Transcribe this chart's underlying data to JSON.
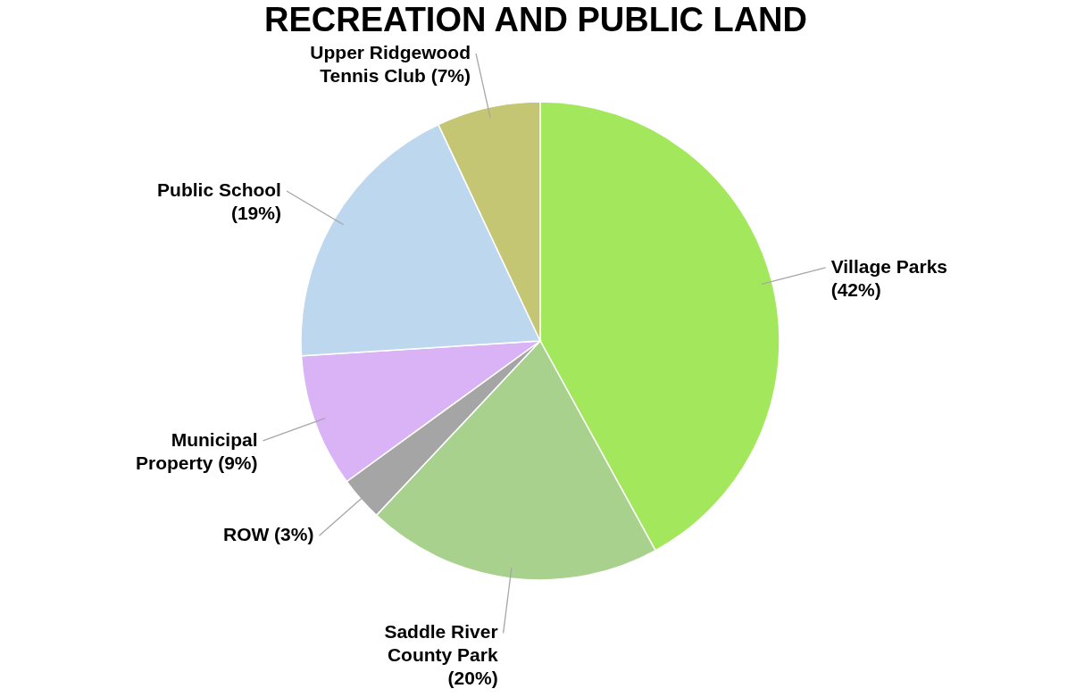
{
  "chart_data": {
    "type": "pie",
    "title": "RECREATION AND PUBLIC LAND",
    "categories": [
      "Village Parks",
      "Saddle River County Park",
      "ROW",
      "Municipal Property",
      "Public School",
      "Upper Ridgewood Tennis Club"
    ],
    "values": [
      42,
      20,
      3,
      9,
      19,
      7
    ],
    "value_labels": [
      "(42%)",
      "(20%)",
      "(3%)",
      "(9%)",
      "(19%)",
      "(7%)"
    ],
    "colors": [
      "#a3e85c",
      "#a9d18e",
      "#a5a5a5",
      "#d9b3f5",
      "#bdd7ee",
      "#c5c674"
    ],
    "legend": false
  }
}
